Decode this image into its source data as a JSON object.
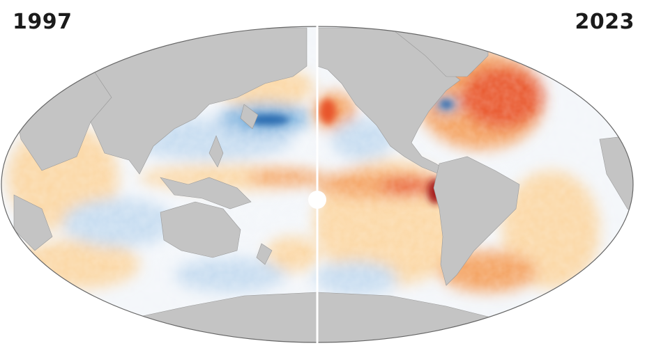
{
  "panels": {
    "left": {
      "year": "1997"
    },
    "right": {
      "year": "2023"
    }
  },
  "colors": {
    "land": "#c4c4c4",
    "ocean_neutral": "#f3f6fa",
    "warm_light": "#fbd7a4",
    "warm_mid": "#f4a261",
    "warm_strong": "#e8542c",
    "warm_extreme": "#a61c1c",
    "cool_light": "#c6dcf0",
    "cool_mid": "#7fb3de",
    "cool_strong": "#2b6cb0",
    "divider": "#ffffff",
    "outline": "#666666"
  }
}
